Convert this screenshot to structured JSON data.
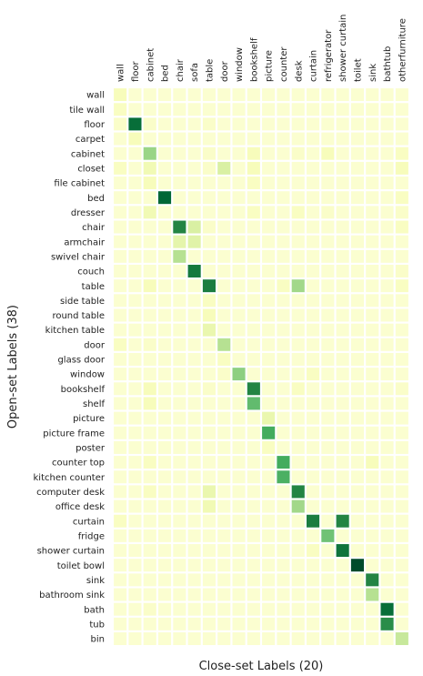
{
  "chart_data": {
    "type": "heatmap",
    "xlabel": "Close-set Labels (20)",
    "ylabel": "Open-set Labels (38)",
    "x_categories": [
      "wall",
      "floor",
      "cabinet",
      "bed",
      "chair",
      "sofa",
      "table",
      "door",
      "window",
      "bookshelf",
      "picture",
      "counter",
      "desk",
      "curtain",
      "refrigerator",
      "shower curtain",
      "toilet",
      "sink",
      "bathtub",
      "otherfurniture"
    ],
    "y_categories": [
      "wall",
      "tile wall",
      "floor",
      "carpet",
      "cabinet",
      "closet",
      "file cabinet",
      "bed",
      "dresser",
      "chair",
      "armchair",
      "swivel chair",
      "couch",
      "table",
      "side table",
      "round table",
      "kitchen table",
      "door",
      "glass door",
      "window",
      "bookshelf",
      "shelf",
      "picture",
      "picture frame",
      "poster",
      "counter top",
      "kitchen counter",
      "computer desk",
      "office desk",
      "curtain",
      "fridge",
      "shower curtain",
      "toilet bowl",
      "sink",
      "bathroom sink",
      "bath",
      "tub",
      "bin"
    ],
    "value_range": [
      0,
      1
    ],
    "colormap": [
      "#ffffe5",
      "#f7fcb9",
      "#d9f0a3",
      "#addd8e",
      "#78c679",
      "#41ab5d",
      "#238443",
      "#006837",
      "#004529"
    ],
    "grid": false,
    "matrix": [
      [
        0.12,
        0.06,
        0.06,
        0.06,
        0.06,
        0.06,
        0.06,
        0.06,
        0.06,
        0.06,
        0.06,
        0.06,
        0.06,
        0.06,
        0.06,
        0.06,
        0.06,
        0.06,
        0.06,
        0.06
      ],
      [
        0.1,
        0.06,
        0.06,
        0.06,
        0.06,
        0.06,
        0.06,
        0.06,
        0.06,
        0.06,
        0.06,
        0.06,
        0.06,
        0.06,
        0.06,
        0.06,
        0.06,
        0.06,
        0.06,
        0.06
      ],
      [
        0.08,
        0.85,
        0.08,
        0.06,
        0.06,
        0.06,
        0.08,
        0.06,
        0.06,
        0.06,
        0.06,
        0.06,
        0.06,
        0.06,
        0.06,
        0.06,
        0.06,
        0.06,
        0.06,
        0.06
      ],
      [
        0.06,
        0.12,
        0.06,
        0.06,
        0.06,
        0.06,
        0.06,
        0.06,
        0.06,
        0.06,
        0.06,
        0.06,
        0.06,
        0.06,
        0.06,
        0.06,
        0.06,
        0.06,
        0.06,
        0.06
      ],
      [
        0.06,
        0.06,
        0.42,
        0.06,
        0.06,
        0.06,
        0.08,
        0.06,
        0.06,
        0.12,
        0.06,
        0.06,
        0.08,
        0.06,
        0.12,
        0.06,
        0.06,
        0.06,
        0.06,
        0.1
      ],
      [
        0.1,
        0.06,
        0.15,
        0.06,
        0.06,
        0.06,
        0.08,
        0.25,
        0.06,
        0.12,
        0.06,
        0.06,
        0.06,
        0.06,
        0.06,
        0.06,
        0.06,
        0.06,
        0.06,
        0.12
      ],
      [
        0.06,
        0.06,
        0.12,
        0.06,
        0.06,
        0.06,
        0.06,
        0.06,
        0.06,
        0.1,
        0.06,
        0.06,
        0.06,
        0.06,
        0.06,
        0.06,
        0.06,
        0.06,
        0.06,
        0.06
      ],
      [
        0.06,
        0.06,
        0.06,
        0.88,
        0.06,
        0.06,
        0.06,
        0.06,
        0.06,
        0.06,
        0.06,
        0.06,
        0.06,
        0.06,
        0.06,
        0.06,
        0.06,
        0.06,
        0.06,
        0.1
      ],
      [
        0.06,
        0.06,
        0.15,
        0.06,
        0.06,
        0.06,
        0.06,
        0.06,
        0.06,
        0.1,
        0.06,
        0.06,
        0.1,
        0.06,
        0.08,
        0.06,
        0.06,
        0.06,
        0.06,
        0.08
      ],
      [
        0.06,
        0.06,
        0.06,
        0.06,
        0.75,
        0.25,
        0.08,
        0.06,
        0.06,
        0.06,
        0.06,
        0.06,
        0.06,
        0.06,
        0.06,
        0.06,
        0.06,
        0.06,
        0.06,
        0.1
      ],
      [
        0.06,
        0.06,
        0.06,
        0.06,
        0.2,
        0.22,
        0.06,
        0.06,
        0.06,
        0.06,
        0.06,
        0.06,
        0.06,
        0.06,
        0.06,
        0.06,
        0.06,
        0.06,
        0.06,
        0.06
      ],
      [
        0.06,
        0.06,
        0.06,
        0.06,
        0.35,
        0.06,
        0.06,
        0.06,
        0.06,
        0.06,
        0.06,
        0.06,
        0.06,
        0.06,
        0.06,
        0.06,
        0.06,
        0.06,
        0.06,
        0.06
      ],
      [
        0.06,
        0.06,
        0.06,
        0.06,
        0.06,
        0.8,
        0.06,
        0.06,
        0.06,
        0.06,
        0.06,
        0.06,
        0.06,
        0.06,
        0.06,
        0.06,
        0.06,
        0.06,
        0.06,
        0.08
      ],
      [
        0.06,
        0.06,
        0.12,
        0.06,
        0.06,
        0.06,
        0.78,
        0.06,
        0.06,
        0.06,
        0.06,
        0.1,
        0.4,
        0.06,
        0.06,
        0.06,
        0.06,
        0.06,
        0.06,
        0.1
      ],
      [
        0.06,
        0.06,
        0.06,
        0.06,
        0.06,
        0.06,
        0.1,
        0.06,
        0.06,
        0.06,
        0.06,
        0.06,
        0.06,
        0.06,
        0.06,
        0.06,
        0.06,
        0.06,
        0.06,
        0.06
      ],
      [
        0.06,
        0.06,
        0.06,
        0.06,
        0.06,
        0.06,
        0.12,
        0.06,
        0.06,
        0.06,
        0.06,
        0.06,
        0.06,
        0.06,
        0.06,
        0.06,
        0.06,
        0.06,
        0.06,
        0.06
      ],
      [
        0.06,
        0.06,
        0.06,
        0.06,
        0.06,
        0.06,
        0.18,
        0.06,
        0.06,
        0.06,
        0.06,
        0.06,
        0.06,
        0.06,
        0.06,
        0.06,
        0.06,
        0.06,
        0.06,
        0.06
      ],
      [
        0.1,
        0.06,
        0.08,
        0.06,
        0.06,
        0.06,
        0.06,
        0.35,
        0.06,
        0.06,
        0.06,
        0.06,
        0.06,
        0.06,
        0.06,
        0.06,
        0.06,
        0.06,
        0.06,
        0.06
      ],
      [
        0.06,
        0.06,
        0.06,
        0.06,
        0.06,
        0.06,
        0.06,
        0.1,
        0.06,
        0.06,
        0.06,
        0.06,
        0.06,
        0.06,
        0.06,
        0.06,
        0.06,
        0.06,
        0.06,
        0.06
      ],
      [
        0.06,
        0.06,
        0.06,
        0.06,
        0.06,
        0.06,
        0.06,
        0.08,
        0.45,
        0.06,
        0.06,
        0.06,
        0.06,
        0.1,
        0.06,
        0.06,
        0.06,
        0.06,
        0.06,
        0.06
      ],
      [
        0.06,
        0.06,
        0.12,
        0.06,
        0.06,
        0.06,
        0.08,
        0.06,
        0.06,
        0.75,
        0.06,
        0.06,
        0.1,
        0.06,
        0.06,
        0.06,
        0.06,
        0.06,
        0.06,
        0.08
      ],
      [
        0.06,
        0.06,
        0.12,
        0.06,
        0.06,
        0.06,
        0.06,
        0.06,
        0.06,
        0.55,
        0.06,
        0.06,
        0.06,
        0.06,
        0.06,
        0.06,
        0.06,
        0.06,
        0.06,
        0.06
      ],
      [
        0.06,
        0.06,
        0.06,
        0.06,
        0.06,
        0.06,
        0.06,
        0.06,
        0.06,
        0.06,
        0.18,
        0.06,
        0.06,
        0.06,
        0.06,
        0.06,
        0.06,
        0.06,
        0.06,
        0.06
      ],
      [
        0.06,
        0.06,
        0.06,
        0.06,
        0.06,
        0.06,
        0.06,
        0.06,
        0.06,
        0.06,
        0.62,
        0.06,
        0.06,
        0.06,
        0.06,
        0.06,
        0.06,
        0.06,
        0.06,
        0.06
      ],
      [
        0.06,
        0.06,
        0.06,
        0.06,
        0.06,
        0.06,
        0.06,
        0.06,
        0.06,
        0.06,
        0.1,
        0.06,
        0.06,
        0.06,
        0.06,
        0.06,
        0.06,
        0.06,
        0.06,
        0.06
      ],
      [
        0.06,
        0.06,
        0.1,
        0.06,
        0.06,
        0.06,
        0.06,
        0.06,
        0.06,
        0.06,
        0.06,
        0.62,
        0.06,
        0.06,
        0.06,
        0.06,
        0.06,
        0.12,
        0.06,
        0.06
      ],
      [
        0.06,
        0.06,
        0.06,
        0.06,
        0.06,
        0.06,
        0.06,
        0.06,
        0.06,
        0.06,
        0.06,
        0.6,
        0.06,
        0.06,
        0.06,
        0.06,
        0.06,
        0.06,
        0.06,
        0.06
      ],
      [
        0.06,
        0.06,
        0.1,
        0.06,
        0.06,
        0.06,
        0.18,
        0.06,
        0.06,
        0.06,
        0.06,
        0.06,
        0.75,
        0.06,
        0.06,
        0.06,
        0.06,
        0.06,
        0.06,
        0.06
      ],
      [
        0.06,
        0.06,
        0.06,
        0.06,
        0.06,
        0.06,
        0.15,
        0.06,
        0.06,
        0.06,
        0.06,
        0.06,
        0.4,
        0.06,
        0.06,
        0.06,
        0.06,
        0.06,
        0.06,
        0.06
      ],
      [
        0.1,
        0.06,
        0.06,
        0.06,
        0.06,
        0.06,
        0.06,
        0.06,
        0.06,
        0.06,
        0.06,
        0.06,
        0.06,
        0.78,
        0.06,
        0.75,
        0.06,
        0.06,
        0.06,
        0.06
      ],
      [
        0.06,
        0.06,
        0.06,
        0.06,
        0.06,
        0.06,
        0.06,
        0.06,
        0.06,
        0.06,
        0.06,
        0.06,
        0.06,
        0.06,
        0.52,
        0.06,
        0.06,
        0.06,
        0.06,
        0.06
      ],
      [
        0.06,
        0.06,
        0.06,
        0.06,
        0.06,
        0.06,
        0.06,
        0.06,
        0.06,
        0.06,
        0.06,
        0.06,
        0.06,
        0.1,
        0.06,
        0.82,
        0.06,
        0.06,
        0.06,
        0.06
      ],
      [
        0.06,
        0.06,
        0.06,
        0.06,
        0.06,
        0.06,
        0.06,
        0.06,
        0.06,
        0.06,
        0.06,
        0.06,
        0.06,
        0.06,
        0.06,
        0.06,
        0.98,
        0.06,
        0.06,
        0.06
      ],
      [
        0.06,
        0.06,
        0.06,
        0.06,
        0.06,
        0.06,
        0.06,
        0.06,
        0.06,
        0.06,
        0.06,
        0.06,
        0.06,
        0.06,
        0.06,
        0.06,
        0.06,
        0.75,
        0.06,
        0.06
      ],
      [
        0.06,
        0.06,
        0.06,
        0.06,
        0.06,
        0.06,
        0.06,
        0.06,
        0.06,
        0.06,
        0.06,
        0.06,
        0.06,
        0.06,
        0.06,
        0.06,
        0.06,
        0.35,
        0.06,
        0.06
      ],
      [
        0.06,
        0.06,
        0.08,
        0.06,
        0.06,
        0.06,
        0.06,
        0.06,
        0.06,
        0.06,
        0.06,
        0.06,
        0.06,
        0.06,
        0.06,
        0.06,
        0.06,
        0.06,
        0.85,
        0.06
      ],
      [
        0.06,
        0.06,
        0.06,
        0.06,
        0.06,
        0.06,
        0.06,
        0.06,
        0.06,
        0.06,
        0.06,
        0.06,
        0.06,
        0.06,
        0.06,
        0.06,
        0.06,
        0.06,
        0.72,
        0.06
      ],
      [
        0.06,
        0.06,
        0.06,
        0.06,
        0.06,
        0.06,
        0.06,
        0.06,
        0.06,
        0.06,
        0.06,
        0.06,
        0.06,
        0.06,
        0.06,
        0.06,
        0.06,
        0.06,
        0.06,
        0.3
      ]
    ]
  }
}
